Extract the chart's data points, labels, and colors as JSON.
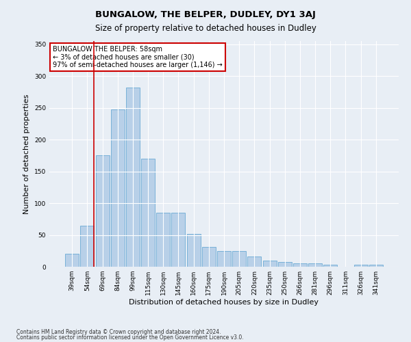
{
  "title": "BUNGALOW, THE BELPER, DUDLEY, DY1 3AJ",
  "subtitle": "Size of property relative to detached houses in Dudley",
  "xlabel": "Distribution of detached houses by size in Dudley",
  "ylabel": "Number of detached properties",
  "categories": [
    "39sqm",
    "54sqm",
    "69sqm",
    "84sqm",
    "99sqm",
    "115sqm",
    "130sqm",
    "145sqm",
    "160sqm",
    "175sqm",
    "190sqm",
    "205sqm",
    "220sqm",
    "235sqm",
    "250sqm",
    "266sqm",
    "281sqm",
    "296sqm",
    "311sqm",
    "326sqm",
    "341sqm"
  ],
  "values": [
    20,
    65,
    175,
    247,
    282,
    170,
    85,
    85,
    52,
    31,
    25,
    25,
    16,
    10,
    7,
    5,
    5,
    3,
    0,
    3,
    3
  ],
  "bar_color": "#b8d0e8",
  "bar_edge_color": "#6aaad4",
  "marker_label_line1": "BUNGALOW THE BELPER: 58sqm",
  "marker_label_line2": "← 3% of detached houses are smaller (30)",
  "marker_label_line3": "97% of semi-detached houses are larger (1,146) →",
  "annotation_box_color": "#ffffff",
  "annotation_border_color": "#cc0000",
  "vline_color": "#cc0000",
  "ylim": [
    0,
    355
  ],
  "yticks": [
    0,
    50,
    100,
    150,
    200,
    250,
    300,
    350
  ],
  "bg_color": "#e8eef5",
  "plot_bg_color": "#e8eef5",
  "footer1": "Contains HM Land Registry data © Crown copyright and database right 2024.",
  "footer2": "Contains public sector information licensed under the Open Government Licence v3.0.",
  "title_fontsize": 9.5,
  "subtitle_fontsize": 8.5,
  "axis_label_fontsize": 8,
  "tick_fontsize": 6.5,
  "annotation_fontsize": 7,
  "footer_fontsize": 5.5
}
